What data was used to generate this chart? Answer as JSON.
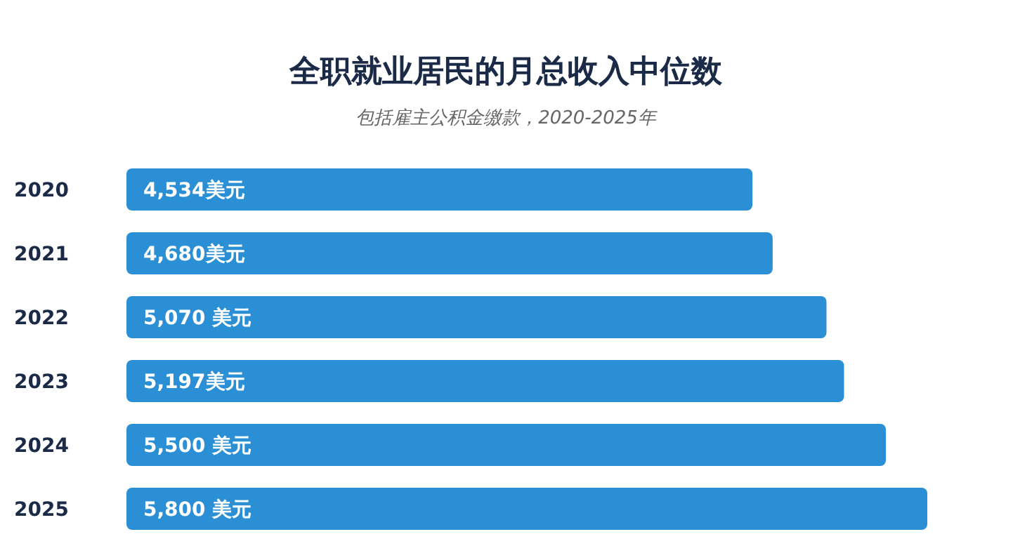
{
  "chart_data": {
    "type": "bar",
    "orientation": "horizontal",
    "title": "全职就业居民的月总收入中位数",
    "subtitle": "包括雇主公积金缴款，2020-2025年",
    "categories": [
      "2020",
      "2021",
      "2022",
      "2023",
      "2024",
      "2025"
    ],
    "values": [
      4534,
      4680,
      5070,
      5197,
      5500,
      5800
    ],
    "value_labels": [
      "4,534美元",
      "4,680美元",
      "5,070 美元",
      "5,197美元",
      "5,500 美元",
      "5,800 美元"
    ],
    "color": "#2b8fd6"
  }
}
